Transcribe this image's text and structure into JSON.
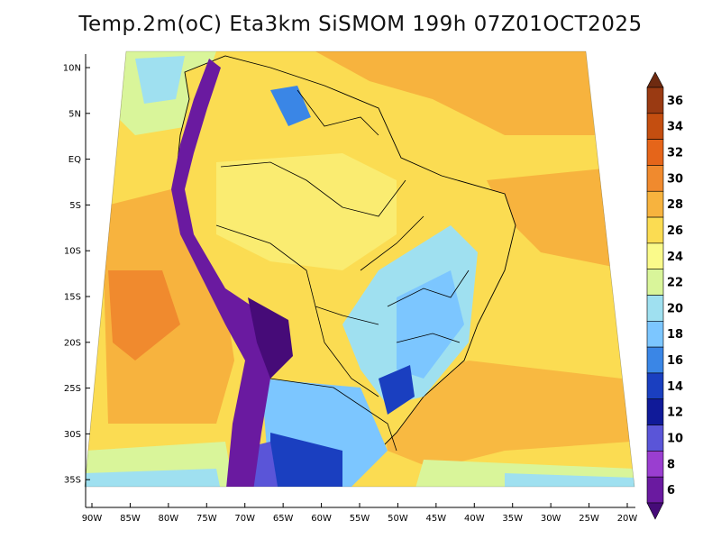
{
  "title": "Temp.2m(oC) Eta3km SiSMOM 199h 07Z01OCT2025",
  "lat_labels": [
    "10N",
    "5N",
    "EQ",
    "5S",
    "10S",
    "15S",
    "20S",
    "25S",
    "30S",
    "35S"
  ],
  "lon_labels": [
    "90W",
    "85W",
    "80W",
    "75W",
    "70W",
    "65W",
    "60W",
    "55W",
    "50W",
    "45W",
    "40W",
    "35W",
    "30W",
    "25W",
    "20W"
  ],
  "colorbar": {
    "labels": [
      "36",
      "34",
      "32",
      "30",
      "28",
      "26",
      "24",
      "22",
      "20",
      "18",
      "16",
      "14",
      "12",
      "10",
      "8",
      "6"
    ],
    "colors": [
      "#6e2a10",
      "#9a3a12",
      "#c44e10",
      "#e5651a",
      "#f08a2e",
      "#f7b33e",
      "#fbdc52",
      "#fafa8a",
      "#d9f59a",
      "#9fe0f0",
      "#7cc6ff",
      "#3a86e6",
      "#1a3fc0",
      "#101a99",
      "#5a55d8",
      "#9a3ed0",
      "#6a1aa0",
      "#460b78"
    ]
  },
  "colors": {
    "ocean_warm": "#f7b33e",
    "ocean_mild": "#fbdc52",
    "ocean_cool": "#fafa8a",
    "land": "#fbdc52",
    "andes": "#5a1a8a",
    "highlands": "#3a86e6",
    "border": "#000000"
  }
}
